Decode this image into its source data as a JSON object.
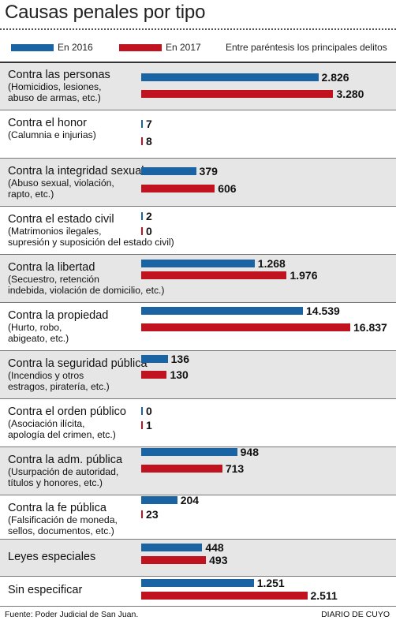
{
  "title": "Causas penales por tipo",
  "legend": {
    "series_2016": "En 2016",
    "series_2017": "En 2017",
    "note": "Entre paréntesis los principales delitos"
  },
  "colors": {
    "y2016": "#1b64a3",
    "y2017": "#c1121f"
  },
  "chart_data": {
    "type": "bar",
    "orientation": "horizontal",
    "title": "Causas penales por tipo",
    "series": [
      {
        "name": "En 2016"
      },
      {
        "name": "En 2017"
      }
    ],
    "categories": [
      {
        "name": "Contra las personas",
        "examples": [
          "(Homicidios, lesiones,",
          "abuso de armas, etc.)"
        ],
        "v2016": 2826,
        "v2017": 3280,
        "l2016": "2.826",
        "l2017": "3.280",
        "shaded": true
      },
      {
        "name": "Contra el honor",
        "examples": [
          "(Calumnia e injurias)"
        ],
        "v2016": 7,
        "v2017": 8,
        "l2016": "7",
        "l2017": "8",
        "shaded": false
      },
      {
        "name": "Contra la integridad sexual",
        "examples": [
          "(Abuso sexual, violación,",
          "rapto, etc.)"
        ],
        "v2016": 379,
        "v2017": 606,
        "l2016": "379",
        "l2017": "606",
        "shaded": true
      },
      {
        "name": "Contra el estado civil",
        "examples": [
          "(Matrimonios ilegales,",
          "supresión y suposición del estado civil)"
        ],
        "v2016": 2,
        "v2017": 0,
        "l2016": "2",
        "l2017": "0",
        "shaded": false
      },
      {
        "name": "Contra la libertad",
        "examples": [
          "(Secuestro, retención",
          "indebida, violación de domicilio, etc.)"
        ],
        "v2016": 1268,
        "v2017": 1976,
        "l2016": "1.268",
        "l2017": "1.976",
        "shaded": true
      },
      {
        "name": "Contra la propiedad",
        "examples": [
          "(Hurto, robo,",
          "abigeato, etc.)"
        ],
        "v2016": 14539,
        "v2017": 16837,
        "l2016": "14.539",
        "l2017": "16.837",
        "shaded": false
      },
      {
        "name": "Contra la seguridad pública",
        "examples": [
          "(Incendios y otros",
          "estragos, piratería, etc.)"
        ],
        "v2016": 136,
        "v2017": 130,
        "l2016": "136",
        "l2017": "130",
        "shaded": true
      },
      {
        "name": "Contra el orden público",
        "examples": [
          "(Asociación ilícita,",
          "apología del crimen, etc.)"
        ],
        "v2016": 0,
        "v2017": 1,
        "l2016": "0",
        "l2017": "1",
        "shaded": false
      },
      {
        "name": "Contra la adm. pública",
        "examples": [
          "(Usurpación de autoridad,",
          "títulos y honores, etc.)"
        ],
        "v2016": 948,
        "v2017": 713,
        "l2016": "948",
        "l2017": "713",
        "shaded": true
      },
      {
        "name": "Contra la fe pública",
        "examples": [
          "(Falsificación de moneda,",
          "sellos, documentos, etc.)"
        ],
        "v2016": 204,
        "v2017": 23,
        "l2016": "204",
        "l2017": "23",
        "shaded": false
      },
      {
        "name": "Leyes especiales",
        "examples": [],
        "v2016": 448,
        "v2017": 493,
        "l2016": "448",
        "l2017": "493",
        "shaded": true
      },
      {
        "name": "Sin especificar",
        "examples": [],
        "v2016": 1251,
        "v2017": 2511,
        "l2016": "1.251",
        "l2017": "2.511",
        "shaded": false
      }
    ]
  },
  "footer": {
    "source": "Fuente: Poder Judicial de San Juan.",
    "brand": "DIARIO DE CUYO"
  }
}
